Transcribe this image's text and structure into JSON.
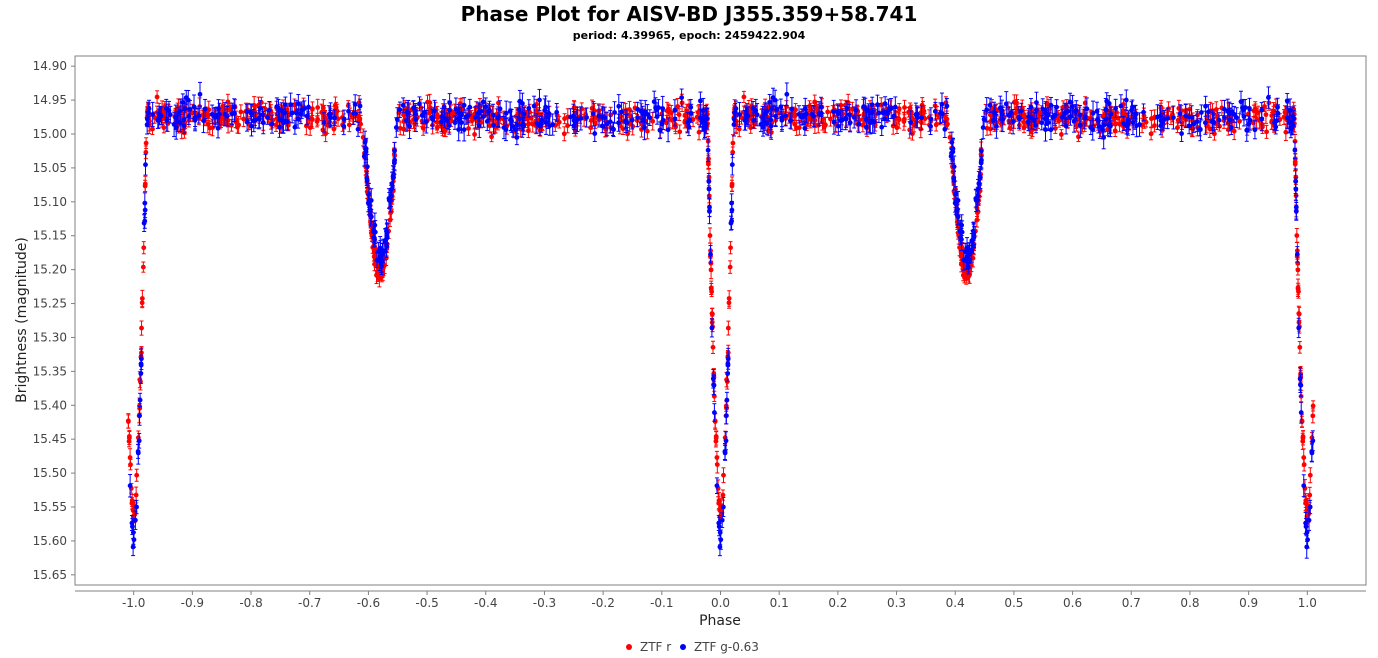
{
  "chart_data": {
    "type": "scatter",
    "title": "Phase Plot for AISV-BD J355.359+58.741",
    "subtitle": "period: 4.39965, epoch: 2459422.904",
    "xlabel": "Phase",
    "ylabel": "Brightness (magnitude)",
    "xlim": [
      -1.1,
      1.1
    ],
    "ylim": [
      15.665,
      14.885
    ],
    "y_inverted": true,
    "x_ticks": [
      "-1.0",
      "-0.9",
      "-0.8",
      "-0.7",
      "-0.6",
      "-0.5",
      "-0.4",
      "-0.3",
      "-0.2",
      "-0.1",
      "0.0",
      "0.1",
      "0.2",
      "0.3",
      "0.4",
      "0.5",
      "0.6",
      "0.7",
      "0.8",
      "0.9",
      "1.0"
    ],
    "y_ticks": [
      "14.90",
      "14.95",
      "15.00",
      "15.05",
      "15.10",
      "15.15",
      "15.20",
      "15.25",
      "15.30",
      "15.35",
      "15.40",
      "15.45",
      "15.50",
      "15.55",
      "15.60",
      "15.65"
    ],
    "grid": false,
    "legend_position": "bottom-center",
    "series": [
      {
        "name": "ZTF r",
        "color": "#ff0000",
        "baseline": 14.975,
        "scatter": 0.02,
        "error": 0.01,
        "primary_eclipse": {
          "center": 0.0,
          "depth_mag": 0.585,
          "half_width": 0.022
        },
        "secondary_eclipse": {
          "center": 0.42,
          "depth_mag": 0.23,
          "half_width": 0.03
        },
        "points_per_period": 560
      },
      {
        "name": "ZTF g-0.63",
        "color": "#0000ff",
        "baseline": 14.975,
        "scatter": 0.022,
        "error": 0.014,
        "primary_eclipse": {
          "center": 0.0,
          "depth_mag": 0.625,
          "half_width": 0.022
        },
        "secondary_eclipse": {
          "center": 0.42,
          "depth_mag": 0.205,
          "half_width": 0.03
        },
        "points_per_period": 340
      }
    ]
  }
}
